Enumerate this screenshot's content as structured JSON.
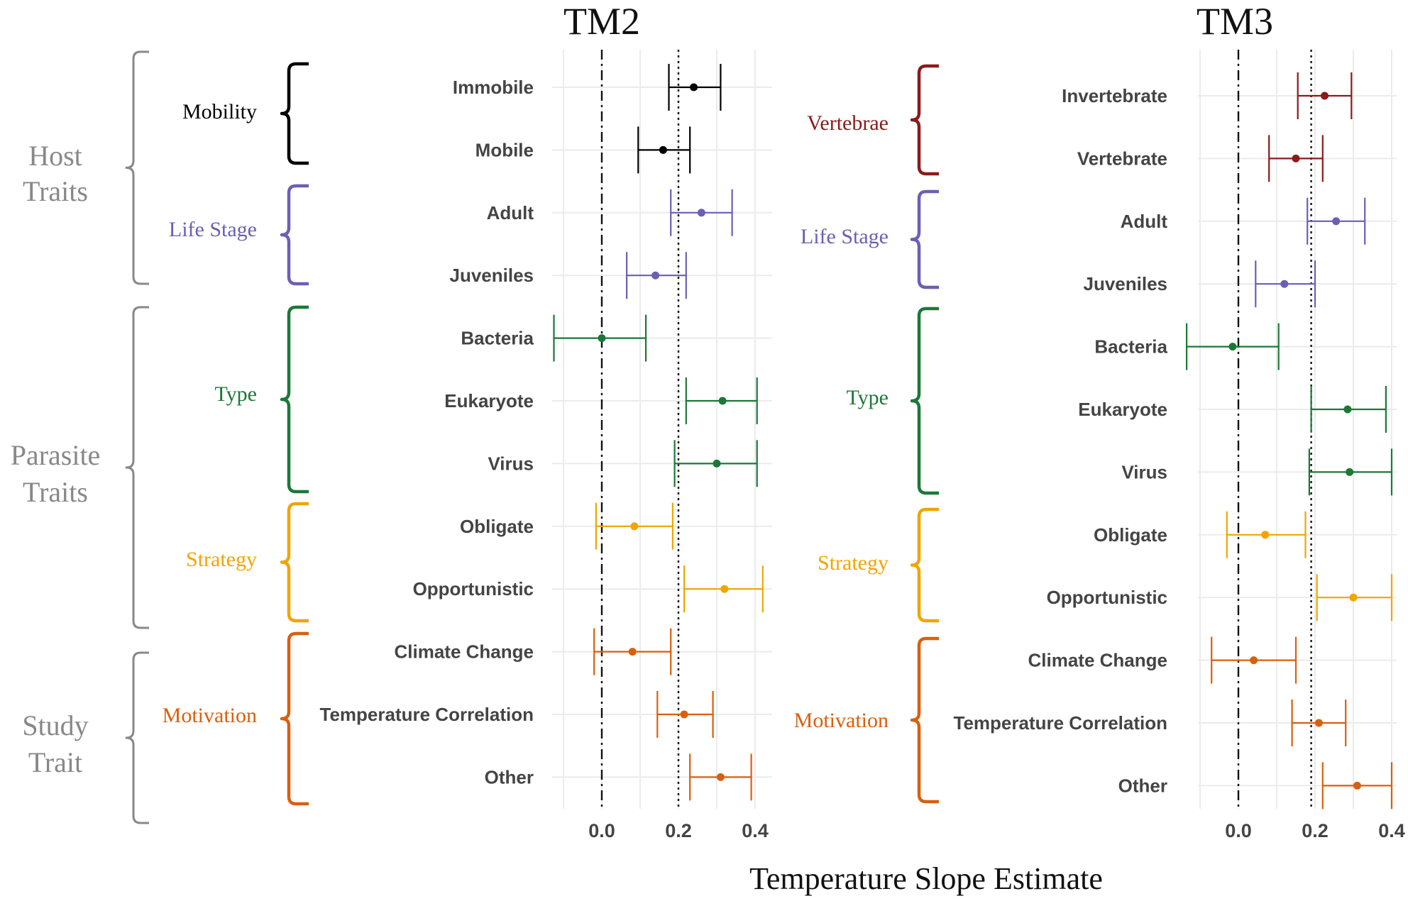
{
  "figure": {
    "xlabel": "Temperature Slope Estimate"
  },
  "chart_data": [
    {
      "type": "scatter",
      "subtype": "forest-plot (point estimates with confidence intervals)",
      "title": "TM2",
      "xlabel": "Temperature Slope Estimate",
      "xlim": [
        -0.13,
        0.43
      ],
      "xticks": [
        "0.0",
        "0.2",
        "0.4"
      ],
      "reference_lines": [
        {
          "style": "dashdot",
          "x": 0.0
        },
        {
          "style": "dotted",
          "x": 0.2
        }
      ],
      "grid": true,
      "categories": [
        "Immobile",
        "Mobile",
        "Adult",
        "Juveniles",
        "Bacteria",
        "Eukaryote",
        "Virus",
        "Obligate",
        "Opportunistic",
        "Climate Change",
        "Temperature Correlation",
        "Other"
      ],
      "rows": [
        {
          "label": "Immobile",
          "group": "Mobility",
          "estimate": 0.24,
          "lower": 0.175,
          "upper": 0.31
        },
        {
          "label": "Mobile",
          "group": "Mobility",
          "estimate": 0.16,
          "lower": 0.095,
          "upper": 0.23
        },
        {
          "label": "Adult",
          "group": "Life Stage",
          "estimate": 0.26,
          "lower": 0.18,
          "upper": 0.34
        },
        {
          "label": "Juveniles",
          "group": "Life Stage",
          "estimate": 0.14,
          "lower": 0.065,
          "upper": 0.22
        },
        {
          "label": "Bacteria",
          "group": "Type",
          "estimate": 0.0,
          "lower": -0.125,
          "upper": 0.115
        },
        {
          "label": "Eukaryote",
          "group": "Type",
          "estimate": 0.315,
          "lower": 0.22,
          "upper": 0.405
        },
        {
          "label": "Virus",
          "group": "Type",
          "estimate": 0.3,
          "lower": 0.19,
          "upper": 0.405
        },
        {
          "label": "Obligate",
          "group": "Strategy",
          "estimate": 0.085,
          "lower": -0.015,
          "upper": 0.185
        },
        {
          "label": "Opportunistic",
          "group": "Strategy",
          "estimate": 0.32,
          "lower": 0.215,
          "upper": 0.42
        },
        {
          "label": "Climate Change",
          "group": "Motivation",
          "estimate": 0.08,
          "lower": -0.02,
          "upper": 0.18
        },
        {
          "label": "Temperature Correlation",
          "group": "Motivation",
          "estimate": 0.215,
          "lower": 0.145,
          "upper": 0.29
        },
        {
          "label": "Other",
          "group": "Motivation",
          "estimate": 0.31,
          "lower": 0.23,
          "upper": 0.39
        }
      ],
      "groups": [
        {
          "label": "Mobility",
          "color": "#000000",
          "rows": [
            0,
            1
          ]
        },
        {
          "label": "Life Stage",
          "color": "#6B5FB5",
          "rows": [
            2,
            3
          ]
        },
        {
          "label": "Type",
          "color": "#1B7837",
          "rows": [
            4,
            5,
            6
          ]
        },
        {
          "label": "Strategy",
          "color": "#F0A500",
          "rows": [
            7,
            8
          ]
        },
        {
          "label": "Motivation",
          "color": "#D95F0E",
          "rows": [
            9,
            10,
            11
          ]
        }
      ],
      "supergroups": [
        {
          "label": "Host Traits",
          "color": "#888888",
          "rows": [
            0,
            3
          ]
        },
        {
          "label": "Parasite Traits",
          "color": "#888888",
          "rows": [
            4,
            8
          ]
        },
        {
          "label": "Study Trait",
          "color": "#888888",
          "rows": [
            9,
            11
          ]
        }
      ]
    },
    {
      "type": "scatter",
      "subtype": "forest-plot (point estimates with confidence intervals)",
      "title": "TM3",
      "xlabel": "Temperature Slope Estimate",
      "xlim": [
        -0.13,
        0.43
      ],
      "xticks": [
        "0.0",
        "0.2",
        "0.4"
      ],
      "reference_lines": [
        {
          "style": "dashdot",
          "x": 0.0
        },
        {
          "style": "dotted",
          "x": 0.19
        }
      ],
      "grid": true,
      "categories": [
        "Invertebrate",
        "Vertebrate",
        "Adult",
        "Juveniles",
        "Bacteria",
        "Eukaryote",
        "Virus",
        "Obligate",
        "Opportunistic",
        "Climate Change",
        "Temperature Correlation",
        "Other"
      ],
      "rows": [
        {
          "label": "Invertebrate",
          "group": "Vertebrae",
          "estimate": 0.225,
          "lower": 0.155,
          "upper": 0.295
        },
        {
          "label": "Vertebrate",
          "group": "Vertebrae",
          "estimate": 0.15,
          "lower": 0.08,
          "upper": 0.22
        },
        {
          "label": "Adult",
          "group": "Life Stage",
          "estimate": 0.255,
          "lower": 0.18,
          "upper": 0.33
        },
        {
          "label": "Juveniles",
          "group": "Life Stage",
          "estimate": 0.12,
          "lower": 0.045,
          "upper": 0.2
        },
        {
          "label": "Bacteria",
          "group": "Type",
          "estimate": -0.015,
          "lower": -0.135,
          "upper": 0.105
        },
        {
          "label": "Eukaryote",
          "group": "Type",
          "estimate": 0.285,
          "lower": 0.19,
          "upper": 0.385
        },
        {
          "label": "Virus",
          "group": "Type",
          "estimate": 0.29,
          "lower": 0.185,
          "upper": 0.4
        },
        {
          "label": "Obligate",
          "group": "Strategy",
          "estimate": 0.07,
          "lower": -0.03,
          "upper": 0.175
        },
        {
          "label": "Opportunistic",
          "group": "Strategy",
          "estimate": 0.3,
          "lower": 0.205,
          "upper": 0.4
        },
        {
          "label": "Climate Change",
          "group": "Motivation",
          "estimate": 0.04,
          "lower": -0.07,
          "upper": 0.15
        },
        {
          "label": "Temperature Correlation",
          "group": "Motivation",
          "estimate": 0.21,
          "lower": 0.14,
          "upper": 0.28
        },
        {
          "label": "Other",
          "group": "Motivation",
          "estimate": 0.31,
          "lower": 0.22,
          "upper": 0.4
        }
      ],
      "groups": [
        {
          "label": "Vertebrae",
          "color": "#8B1A1A",
          "rows": [
            0,
            1
          ]
        },
        {
          "label": "Life Stage",
          "color": "#6B5FB5",
          "rows": [
            2,
            3
          ]
        },
        {
          "label": "Type",
          "color": "#1B7837",
          "rows": [
            4,
            5,
            6
          ]
        },
        {
          "label": "Strategy",
          "color": "#F0A500",
          "rows": [
            7,
            8
          ]
        },
        {
          "label": "Motivation",
          "color": "#D95F0E",
          "rows": [
            9,
            10,
            11
          ]
        }
      ]
    }
  ]
}
